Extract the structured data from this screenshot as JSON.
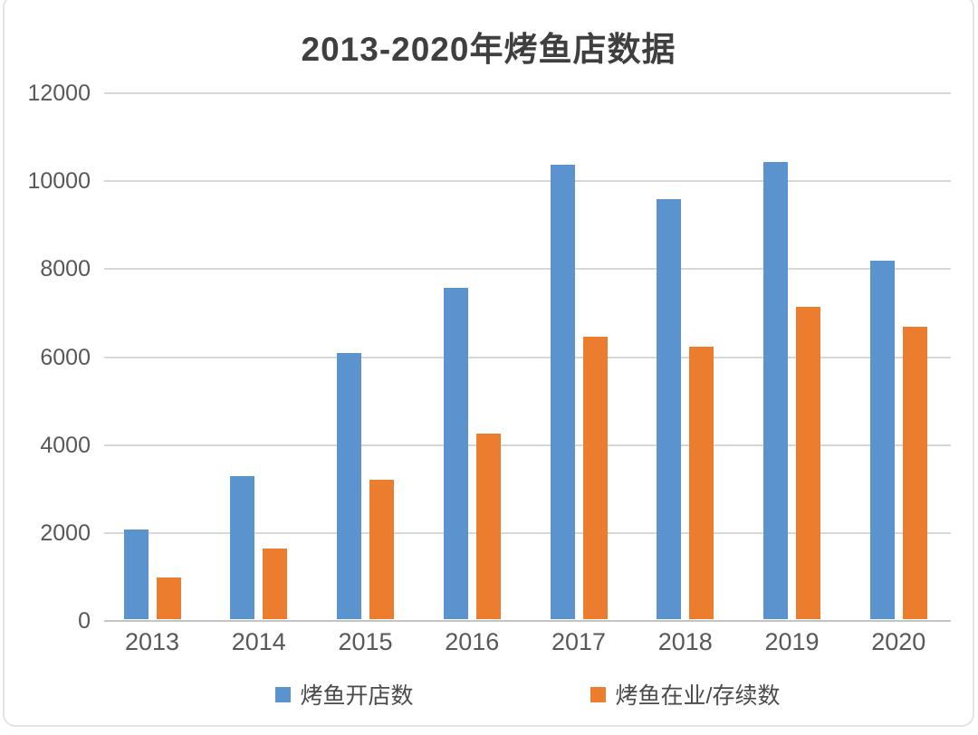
{
  "page": {
    "title": "2013-2020年烤鱼店数据"
  },
  "chart_data": {
    "type": "bar",
    "title": "2013-2020年烤鱼店数据",
    "categories": [
      "2013",
      "2014",
      "2015",
      "2016",
      "2017",
      "2018",
      "2019",
      "2020"
    ],
    "series": [
      {
        "name": "烤鱼开店数",
        "color": "#5B93CE",
        "values": [
          2030,
          3250,
          6060,
          7540,
          10330,
          9550,
          10390,
          8160
        ]
      },
      {
        "name": "烤鱼在业/存续数",
        "color": "#EC7D2F",
        "values": [
          950,
          1600,
          3180,
          4220,
          6420,
          6200,
          7100,
          6650
        ]
      }
    ],
    "xlabel": "",
    "ylabel": "",
    "ylim": [
      0,
      12000
    ],
    "ytick_step": 2000,
    "yticks": [
      0,
      2000,
      4000,
      6000,
      8000,
      10000,
      12000
    ],
    "grid": "horizontal",
    "legend_position": "bottom"
  },
  "colors": {
    "grid": "#D8D8D8",
    "axis": "#C4C4C4",
    "tick_text": "#585858",
    "title_text": "#3F3F3F"
  }
}
